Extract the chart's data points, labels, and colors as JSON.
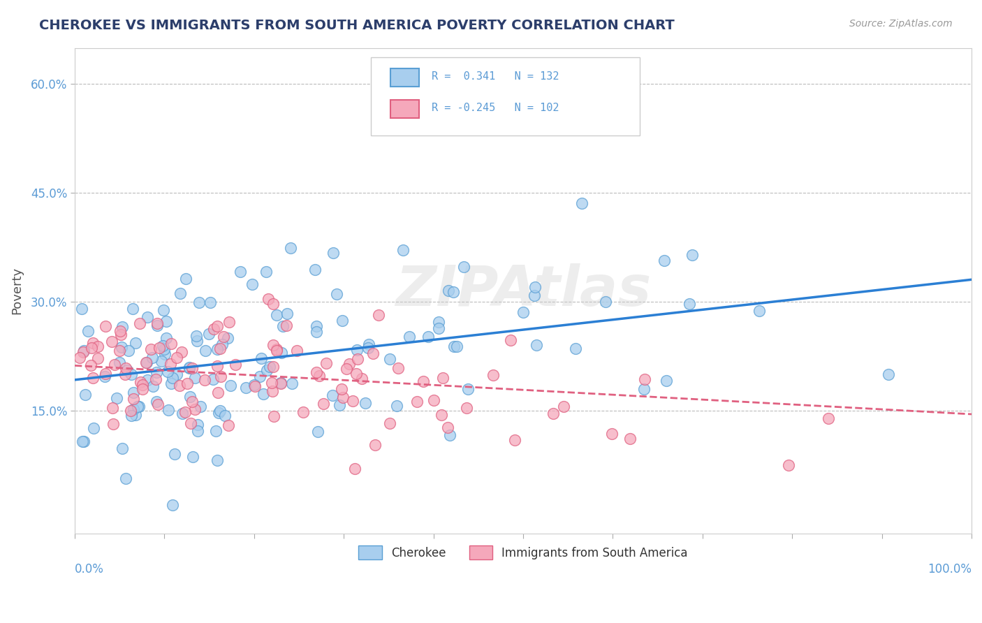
{
  "title": "CHEROKEE VS IMMIGRANTS FROM SOUTH AMERICA POVERTY CORRELATION CHART",
  "source": "Source: ZipAtlas.com",
  "ylabel": "Poverty",
  "xlim": [
    0.0,
    1.0
  ],
  "ylim": [
    -0.02,
    0.65
  ],
  "series": [
    {
      "name": "Cherokee",
      "color": "#A8CEEE",
      "edge_color": "#5A9FD4",
      "R": 0.341,
      "N": 132,
      "line_color": "#2B7FD4",
      "line_style": "-"
    },
    {
      "name": "Immigrants from South America",
      "color": "#F5A8BB",
      "edge_color": "#E06080",
      "R": -0.245,
      "N": 102,
      "line_color": "#E06080",
      "line_style": "--"
    }
  ],
  "legend_R_labels": [
    "R =  0.341   N = 132",
    "R = -0.245   N = 102"
  ],
  "watermark": "ZIPAtlas",
  "background_color": "#FFFFFF",
  "grid_color": "#BBBBBB",
  "title_color": "#2C3E6B",
  "axis_color": "#5B9BD5",
  "source_color": "#999999"
}
